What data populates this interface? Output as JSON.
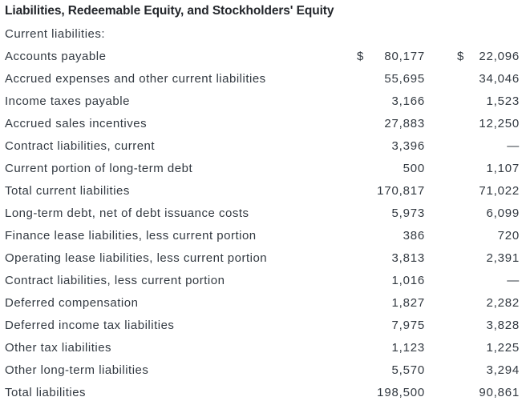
{
  "title": "Liabilities, Redeemable Equity, and Stockholders' Equity",
  "currency_symbol": "$",
  "colors": {
    "background": "#ffffff",
    "text": "#323941",
    "title_text": "#23262b"
  },
  "rows": [
    {
      "type": "section",
      "label": "Current liabilities:",
      "col1": null,
      "col2": null,
      "currency": false
    },
    {
      "type": "item",
      "label": "Accounts payable",
      "col1": "80,177",
      "col2": "22,096",
      "currency": true
    },
    {
      "type": "item",
      "label": "Accrued expenses and other current liabilities",
      "col1": "55,695",
      "col2": "34,046",
      "currency": false
    },
    {
      "type": "item",
      "label": "Income taxes payable",
      "col1": "3,166",
      "col2": "1,523",
      "currency": false
    },
    {
      "type": "item",
      "label": "Accrued sales incentives",
      "col1": "27,883",
      "col2": "12,250",
      "currency": false
    },
    {
      "type": "item",
      "label": "Contract liabilities, current",
      "col1": "3,396",
      "col2": "—",
      "currency": false
    },
    {
      "type": "item",
      "label": "Current portion of long-term debt",
      "col1": "500",
      "col2": "1,107",
      "currency": false
    },
    {
      "type": "total",
      "label": "Total current liabilities",
      "col1": "170,817",
      "col2": "71,022",
      "currency": false
    },
    {
      "type": "item",
      "label": "Long-term debt, net of debt issuance costs",
      "col1": "5,973",
      "col2": "6,099",
      "currency": false
    },
    {
      "type": "item",
      "label": "Finance lease liabilities, less current portion",
      "col1": "386",
      "col2": "720",
      "currency": false
    },
    {
      "type": "item",
      "label": "Operating lease liabilities, less current portion",
      "col1": "3,813",
      "col2": "2,391",
      "currency": false
    },
    {
      "type": "item",
      "label": "Contract liabilities, less current portion",
      "col1": "1,016",
      "col2": "—",
      "currency": false
    },
    {
      "type": "item",
      "label": "Deferred compensation",
      "col1": "1,827",
      "col2": "2,282",
      "currency": false
    },
    {
      "type": "item",
      "label": "Deferred income tax liabilities",
      "col1": "7,975",
      "col2": "3,828",
      "currency": false
    },
    {
      "type": "item",
      "label": "Other tax liabilities",
      "col1": "1,123",
      "col2": "1,225",
      "currency": false
    },
    {
      "type": "item",
      "label": "Other long-term liabilities",
      "col1": "5,570",
      "col2": "3,294",
      "currency": false
    },
    {
      "type": "total",
      "label": "Total liabilities",
      "col1": "198,500",
      "col2": "90,861",
      "currency": false
    }
  ]
}
